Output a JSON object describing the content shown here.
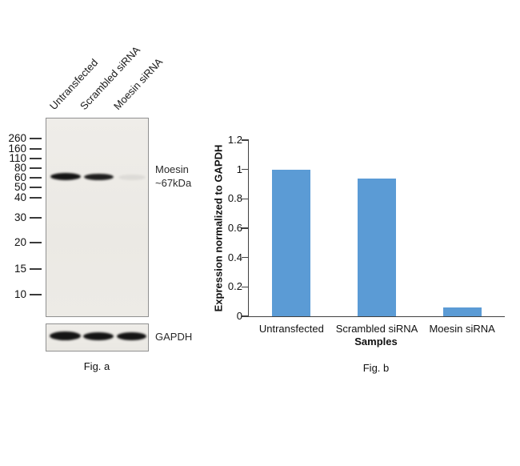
{
  "fig_a": {
    "lane_labels": [
      "Untransfected",
      "Scrambled siRNA",
      "Moesin siRNA"
    ],
    "mw_markers": [
      "260",
      "160",
      "110",
      "80",
      "60",
      "50",
      "40",
      "30",
      "20",
      "15",
      "10"
    ],
    "band_label": [
      "Moesin",
      "~67kDa"
    ],
    "gapdh_label": "GAPDH",
    "caption": "Fig. a"
  },
  "chart_data": {
    "type": "bar",
    "title": "",
    "categories": [
      "Untransfected",
      "Scrambled siRNA",
      "Moesin siRNA"
    ],
    "values": [
      1.0,
      0.94,
      0.06
    ],
    "xlabel": "Samples",
    "ylabel": "Expression normalized to GAPDH",
    "ylim": [
      0,
      1.2
    ],
    "yticks": [
      "0",
      "0.2",
      "0.4",
      "0.6",
      "0.8",
      "1",
      "1.2"
    ],
    "grid": false,
    "legend": false,
    "bar_color": "#5B9BD5",
    "caption": "Fig. b"
  }
}
